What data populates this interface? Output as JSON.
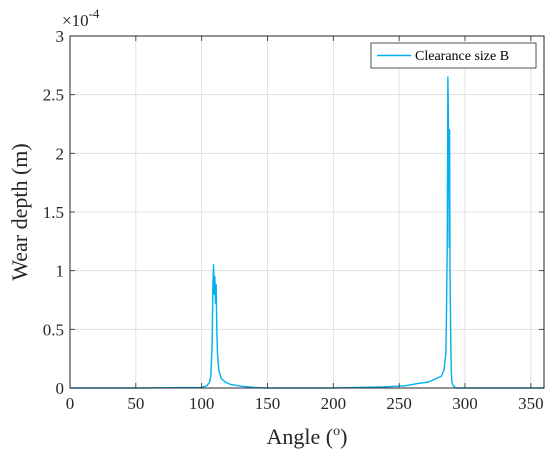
{
  "chart_data": {
    "type": "line",
    "xlabel": "Angle (",
    "xlabel_superscript": "o",
    "xlabel_suffix": ")",
    "ylabel": "Wear depth (m)",
    "y_exponent_prefix": "×10",
    "y_exponent": "-4",
    "xlim": [
      0,
      360
    ],
    "ylim": [
      0,
      3
    ],
    "x_ticks": [
      0,
      50,
      100,
      150,
      200,
      250,
      300,
      350
    ],
    "x_tick_labels": [
      "0",
      "50",
      "100",
      "150",
      "200",
      "250",
      "300",
      "350"
    ],
    "y_ticks": [
      0,
      0.5,
      1,
      1.5,
      2,
      2.5,
      3
    ],
    "y_tick_labels": [
      "0",
      "0.5",
      "1",
      "1.5",
      "2",
      "2.5",
      "3"
    ],
    "grid": true,
    "legend_position": "top-right",
    "series": [
      {
        "name": "Clearance size B",
        "color": "#00b0f0",
        "x": [
          0,
          50,
          100,
          104,
          106,
          107,
          108,
          108.5,
          109,
          109.5,
          110,
          110.5,
          111,
          111.5,
          112,
          113,
          115,
          118,
          122,
          130,
          140,
          150,
          200,
          240,
          255,
          265,
          272,
          278,
          282,
          284,
          285.5,
          286,
          286.5,
          287,
          287.3,
          287.6,
          288,
          288.3,
          288.6,
          289,
          289.3,
          289.6,
          290,
          291,
          292,
          293,
          295,
          300,
          360
        ],
        "y": [
          0,
          0,
          0.005,
          0.02,
          0.05,
          0.1,
          0.4,
          0.85,
          1.05,
          0.8,
          0.95,
          0.72,
          0.88,
          0.5,
          0.3,
          0.15,
          0.08,
          0.05,
          0.03,
          0.015,
          0.005,
          0,
          0,
          0.01,
          0.02,
          0.04,
          0.05,
          0.08,
          0.1,
          0.15,
          0.3,
          0.7,
          1.2,
          2.65,
          2.4,
          2.0,
          1.2,
          2.2,
          1.0,
          0.6,
          0.3,
          0.15,
          0.05,
          0.02,
          0.01,
          0,
          0,
          0,
          0
        ]
      }
    ]
  }
}
